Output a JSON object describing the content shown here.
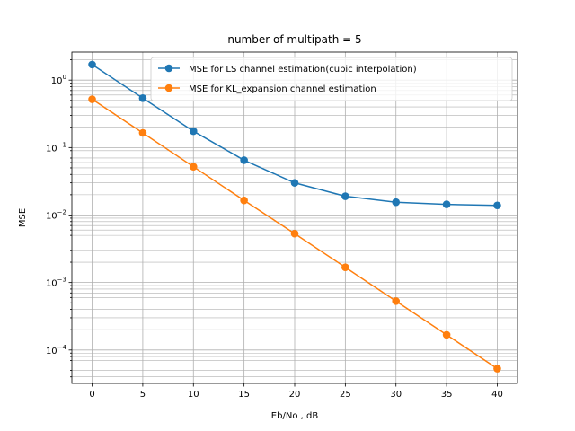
{
  "chart_data": {
    "type": "line",
    "title": "number of multipath = 5",
    "xlabel": "Eb/No , dB",
    "ylabel": "MSE",
    "x": [
      0,
      5,
      10,
      15,
      20,
      25,
      30,
      35,
      40
    ],
    "xlim": [
      -2,
      42
    ],
    "ylim": [
      3.2e-05,
      2.6
    ],
    "yscale": "log",
    "grid": true,
    "legend_position": "top-right",
    "x_ticks": [
      "0",
      "5",
      "10",
      "15",
      "20",
      "25",
      "30",
      "35",
      "40"
    ],
    "y_ticks": [
      {
        "base": "10",
        "exp": "0"
      },
      {
        "base": "10",
        "exp": "−1"
      },
      {
        "base": "10",
        "exp": "−2"
      },
      {
        "base": "10",
        "exp": "−3"
      },
      {
        "base": "10",
        "exp": "−4"
      }
    ],
    "series": [
      {
        "name": "MSE for LS channel estimation(cubic interpolation)",
        "color": "#1f77b4",
        "marker": "circle",
        "values": [
          1.7,
          0.54,
          0.175,
          0.065,
          0.03,
          0.019,
          0.0155,
          0.0144,
          0.0139
        ]
      },
      {
        "name": "MSE for KL_expansion channel estimation",
        "color": "#ff7f0e",
        "marker": "circle",
        "values": [
          0.52,
          0.165,
          0.052,
          0.0165,
          0.0053,
          0.00168,
          0.00053,
          0.000168,
          5.3e-05
        ]
      }
    ]
  }
}
